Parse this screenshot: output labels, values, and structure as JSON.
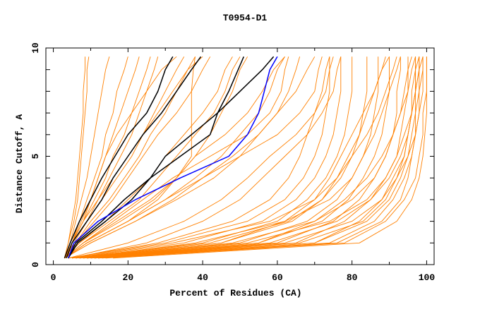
{
  "chart_data": {
    "type": "line",
    "title": "T0954-D1",
    "xlabel": "Percent of Residues (CA)",
    "ylabel": "Distance Cutoff, A",
    "xlim": [
      -2,
      102
    ],
    "ylim": [
      0,
      10
    ],
    "x_ticks": [
      "0",
      "20",
      "40",
      "60",
      "80",
      "100"
    ],
    "y_ticks": [
      "0",
      "5",
      "10"
    ],
    "grid": false,
    "legend": "none",
    "colors": {
      "other_models": "#ff8000",
      "highlight_black": "#000000",
      "highlight_blue": "#0000ff"
    },
    "y_levels": [
      0.3,
      1,
      2,
      3,
      4,
      5,
      6,
      7,
      8,
      9,
      9.6
    ],
    "orange_series_x": [
      [
        3,
        4,
        5,
        6,
        6.5,
        7,
        7.5,
        8,
        8,
        8.5,
        8.5
      ],
      [
        3,
        4,
        5.5,
        6.5,
        7,
        7.5,
        8,
        8.5,
        9,
        9,
        9.5
      ],
      [
        3,
        4.5,
        6,
        7.5,
        9,
        10,
        11,
        12,
        13,
        14,
        15
      ],
      [
        3,
        5,
        7,
        9,
        11,
        13,
        14,
        16,
        17,
        19,
        20
      ],
      [
        3,
        5,
        7.5,
        10,
        12,
        14,
        16,
        18,
        20,
        22,
        23
      ],
      [
        3,
        5,
        8,
        11,
        14,
        16,
        19,
        21,
        23,
        25,
        26
      ],
      [
        3,
        5,
        8,
        12,
        15,
        18,
        21,
        23,
        25,
        27,
        28
      ],
      [
        3,
        5.5,
        9,
        13,
        17,
        21,
        24,
        27,
        30,
        33,
        35
      ],
      [
        3,
        6,
        10,
        15,
        19,
        23,
        26,
        30,
        33,
        36,
        38
      ],
      [
        3,
        5,
        9,
        12,
        16,
        20,
        24,
        28,
        32,
        36,
        40
      ],
      [
        3,
        5,
        8,
        10,
        12,
        14,
        17,
        21,
        25,
        29,
        33
      ],
      [
        3,
        6,
        11,
        16,
        20,
        24,
        28,
        33,
        37,
        40,
        42
      ],
      [
        3,
        7,
        14,
        20,
        26,
        30,
        35,
        40,
        44,
        46,
        48
      ],
      [
        3,
        7,
        15,
        23,
        28,
        33,
        38,
        43,
        46,
        48,
        50
      ],
      [
        3,
        8,
        17,
        26,
        33,
        38,
        42,
        45,
        48,
        50,
        52
      ],
      [
        3,
        8,
        18,
        27,
        33,
        37,
        37,
        37,
        37,
        37.5,
        38
      ],
      [
        3,
        9,
        20,
        30,
        38,
        45,
        50,
        55,
        58,
        60,
        62
      ],
      [
        3,
        9,
        20,
        28,
        33,
        38,
        46,
        52,
        56,
        59,
        62
      ],
      [
        3,
        10,
        22,
        32,
        40,
        48,
        55,
        60,
        63,
        65,
        66
      ],
      [
        3,
        10,
        22,
        33,
        43,
        50,
        55,
        60,
        65,
        68,
        70
      ],
      [
        3,
        9,
        20,
        30,
        40,
        50,
        60,
        66,
        70,
        71,
        72
      ],
      [
        3,
        8,
        16,
        24,
        32,
        42,
        52,
        58,
        61,
        62,
        63
      ],
      [
        4,
        20,
        35,
        45,
        52,
        58,
        65,
        70,
        73,
        74,
        75
      ],
      [
        5,
        25,
        40,
        50,
        56,
        62,
        68,
        72,
        75,
        76,
        77
      ],
      [
        4,
        30,
        52,
        62,
        67,
        70,
        72,
        73,
        74,
        74,
        74
      ],
      [
        5,
        35,
        56,
        65,
        70,
        73,
        75,
        76,
        77,
        77,
        77
      ],
      [
        5,
        40,
        60,
        68,
        73,
        76,
        78,
        79,
        80,
        80,
        80
      ],
      [
        6,
        45,
        64,
        72,
        77,
        80,
        82,
        83,
        84,
        84,
        84
      ],
      [
        7,
        50,
        68,
        76,
        80,
        83,
        85,
        86,
        87,
        87,
        87
      ],
      [
        8,
        55,
        72,
        79,
        83,
        86,
        88,
        89,
        90,
        90,
        90
      ],
      [
        9,
        60,
        75,
        82,
        86,
        89,
        91,
        92,
        92,
        93,
        93
      ],
      [
        10,
        65,
        78,
        85,
        89,
        92,
        93,
        94,
        95,
        95,
        95
      ],
      [
        11,
        70,
        82,
        88,
        91,
        94,
        95,
        96,
        97,
        97,
        97
      ],
      [
        12,
        74,
        86,
        91,
        94,
        96,
        97,
        98,
        98,
        99,
        99
      ],
      [
        14,
        78,
        89,
        94,
        97,
        98,
        99,
        99,
        100,
        100,
        100
      ],
      [
        16,
        82,
        92,
        96,
        98,
        99,
        99.5,
        100,
        100,
        100,
        100
      ],
      [
        6,
        38,
        62,
        74,
        80,
        83,
        86,
        88,
        90,
        92,
        93
      ],
      [
        7,
        48,
        70,
        80,
        86,
        89,
        91,
        93,
        94,
        95,
        96
      ],
      [
        9,
        58,
        76,
        85,
        90,
        93,
        95,
        96,
        97,
        98,
        98
      ],
      [
        5,
        32,
        58,
        70,
        76,
        80,
        84,
        87,
        89,
        91,
        92
      ],
      [
        8,
        52,
        74,
        84,
        89,
        92,
        94,
        96,
        97,
        97,
        98
      ],
      [
        10,
        62,
        80,
        88,
        92,
        95,
        96,
        97,
        98,
        98,
        99
      ],
      [
        6,
        42,
        63,
        72,
        76,
        79,
        82,
        84,
        86,
        88,
        89
      ],
      [
        4,
        28,
        48,
        58,
        63,
        66,
        68,
        70,
        72,
        73,
        74
      ],
      [
        12,
        70,
        84,
        90,
        93,
        95,
        97,
        98,
        99,
        99,
        99
      ],
      [
        7,
        45,
        62,
        70,
        74,
        77,
        80,
        83,
        86,
        88,
        90
      ],
      [
        9,
        55,
        70,
        78,
        84,
        88,
        91,
        93,
        95,
        96,
        97
      ],
      [
        11,
        66,
        83,
        89,
        92,
        94,
        95,
        96,
        96,
        97,
        97
      ],
      [
        13,
        76,
        88,
        93,
        95,
        96,
        97,
        97,
        97,
        98,
        98
      ]
    ],
    "black_series_x": [
      [
        3,
        4.5,
        7,
        10,
        13,
        16.5,
        20,
        25,
        28,
        30,
        32
      ],
      [
        3.5,
        5,
        9,
        13,
        16,
        20,
        24,
        29,
        33,
        37,
        39.5
      ],
      [
        4,
        6,
        13,
        19,
        26,
        34,
        42,
        44,
        47,
        49.5,
        51
      ],
      [
        4,
        6.5,
        14,
        21,
        26,
        30,
        37,
        44,
        50,
        56,
        59
      ]
    ],
    "blue_series_x": [
      4,
      5.5,
      12,
      22,
      34,
      47,
      52,
      55,
      56.5,
      58,
      60
    ]
  }
}
